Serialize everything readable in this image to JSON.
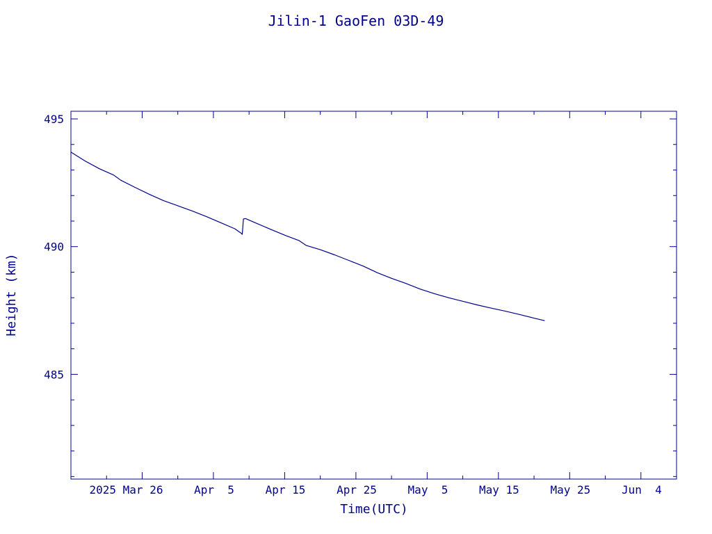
{
  "chart_data": {
    "type": "line",
    "title": "Jilin-1 GaoFen 03D-49",
    "xlabel": "Time(UTC)",
    "ylabel": "Height (km)",
    "xlim": [
      "2025-03-16",
      "2025-06-09"
    ],
    "ylim": [
      480.9,
      495.3
    ],
    "x_ticks": [
      {
        "date": "2025-03-26",
        "label": "2025 Mar 26"
      },
      {
        "date": "2025-04-05",
        "label": "Apr  5"
      },
      {
        "date": "2025-04-15",
        "label": "Apr 15"
      },
      {
        "date": "2025-04-25",
        "label": "Apr 25"
      },
      {
        "date": "2025-05-05",
        "label": "May  5"
      },
      {
        "date": "2025-05-15",
        "label": "May 15"
      },
      {
        "date": "2025-05-25",
        "label": "May 25"
      },
      {
        "date": "2025-06-04",
        "label": "Jun  4"
      }
    ],
    "y_ticks": [
      485,
      490,
      495
    ],
    "grid": false,
    "color": "#00008b",
    "series": [
      {
        "points": [
          [
            "2025-03-16 00:00",
            493.7
          ],
          [
            "2025-03-18 00:00",
            493.35
          ],
          [
            "2025-03-20 00:00",
            493.05
          ],
          [
            "2025-03-22 00:00",
            492.8
          ],
          [
            "2025-03-23 00:00",
            492.6
          ],
          [
            "2025-03-25 00:00",
            492.32
          ],
          [
            "2025-03-27 00:00",
            492.05
          ],
          [
            "2025-03-29 00:00",
            491.8
          ],
          [
            "2025-03-31 00:00",
            491.6
          ],
          [
            "2025-04-02 00:00",
            491.4
          ],
          [
            "2025-04-04 00:00",
            491.18
          ],
          [
            "2025-04-06 00:00",
            490.94
          ],
          [
            "2025-04-08 00:00",
            490.7
          ],
          [
            "2025-04-08 22:00",
            490.52
          ],
          [
            "2025-04-09 01:00",
            490.48
          ],
          [
            "2025-04-09 05:00",
            491.08
          ],
          [
            "2025-04-09 12:00",
            491.1
          ],
          [
            "2025-04-11 00:00",
            490.92
          ],
          [
            "2025-04-13 00:00",
            490.68
          ],
          [
            "2025-04-15 00:00",
            490.45
          ],
          [
            "2025-04-17 00:00",
            490.24
          ],
          [
            "2025-04-18 00:00",
            490.05
          ],
          [
            "2025-04-20 00:00",
            489.88
          ],
          [
            "2025-04-22 00:00",
            489.68
          ],
          [
            "2025-04-24 00:00",
            489.46
          ],
          [
            "2025-04-26 00:00",
            489.24
          ],
          [
            "2025-04-28 00:00",
            488.98
          ],
          [
            "2025-04-30 00:00",
            488.76
          ],
          [
            "2025-05-02 00:00",
            488.56
          ],
          [
            "2025-05-04 00:00",
            488.34
          ],
          [
            "2025-05-06 00:00",
            488.16
          ],
          [
            "2025-05-08 00:00",
            488.0
          ],
          [
            "2025-05-10 00:00",
            487.86
          ],
          [
            "2025-05-12 00:00",
            487.72
          ],
          [
            "2025-05-14 00:00",
            487.59
          ],
          [
            "2025-05-16 00:00",
            487.47
          ],
          [
            "2025-05-18 00:00",
            487.34
          ],
          [
            "2025-05-20 00:00",
            487.2
          ],
          [
            "2025-05-21 12:00",
            487.1
          ]
        ]
      }
    ]
  }
}
